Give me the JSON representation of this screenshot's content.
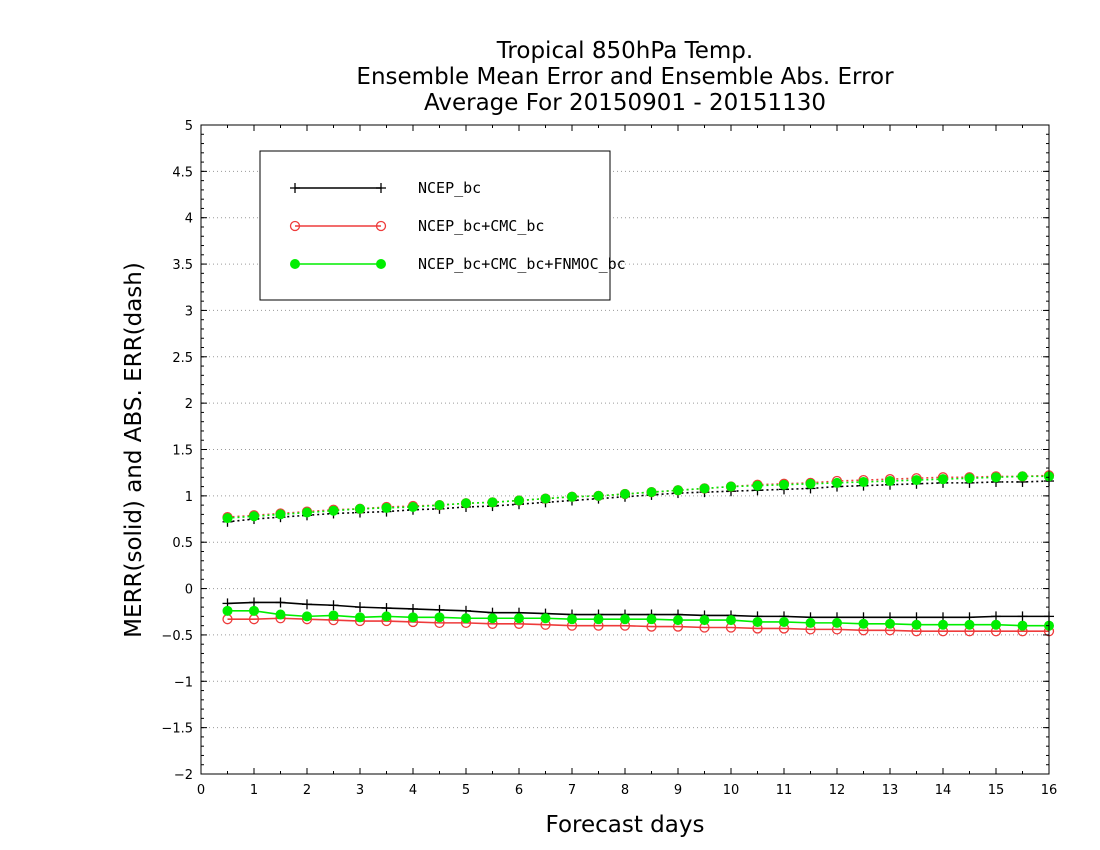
{
  "chart_data": {
    "type": "line",
    "title": [
      "Tropical 850hPa Temp.",
      "Ensemble Mean Error and Ensemble Abs. Error",
      "Average For 20150901 - 20151130"
    ],
    "xlabel": "Forecast days",
    "ylabel": "MERR(solid) and ABS. ERR(dash)",
    "xlim": [
      0,
      16
    ],
    "ylim": [
      -2,
      5
    ],
    "xticks": [
      "0",
      "1",
      "2",
      "3",
      "4",
      "5",
      "6",
      "7",
      "8",
      "9",
      "10",
      "11",
      "12",
      "13",
      "14",
      "15",
      "16"
    ],
    "yticks": [
      "−2",
      "−1.5",
      "−1",
      "−0.5",
      "0",
      "0.5",
      "1",
      "1.5",
      "2",
      "2.5",
      "3",
      "3.5",
      "4",
      "4.5",
      "5"
    ],
    "grid": true,
    "legend_position": "top-left",
    "x": [
      0.5,
      1,
      1.5,
      2,
      2.5,
      3,
      3.5,
      4,
      4.5,
      5,
      5.5,
      6,
      6.5,
      7,
      7.5,
      8,
      8.5,
      9,
      9.5,
      10,
      10.5,
      11,
      11.5,
      12,
      12.5,
      13,
      13.5,
      14,
      14.5,
      15,
      15.5,
      16
    ],
    "series": [
      {
        "name": "NCEP_bc",
        "color": "#000000",
        "marker": "plus",
        "merr": [
          -0.16,
          -0.15,
          -0.15,
          -0.17,
          -0.18,
          -0.2,
          -0.21,
          -0.22,
          -0.23,
          -0.24,
          -0.26,
          -0.26,
          -0.27,
          -0.28,
          -0.28,
          -0.28,
          -0.28,
          -0.28,
          -0.29,
          -0.29,
          -0.3,
          -0.3,
          -0.31,
          -0.31,
          -0.31,
          -0.31,
          -0.31,
          -0.31,
          -0.31,
          -0.3,
          -0.3,
          -0.3
        ],
        "abs_err": [
          0.72,
          0.75,
          0.77,
          0.79,
          0.81,
          0.82,
          0.83,
          0.85,
          0.86,
          0.88,
          0.89,
          0.91,
          0.93,
          0.95,
          0.97,
          0.99,
          1.01,
          1.03,
          1.04,
          1.05,
          1.06,
          1.07,
          1.08,
          1.1,
          1.11,
          1.12,
          1.13,
          1.14,
          1.14,
          1.15,
          1.15,
          1.16
        ]
      },
      {
        "name": "NCEP_bc+CMC_bc",
        "color": "#ee3b3b",
        "marker": "open-circle",
        "merr": [
          -0.33,
          -0.33,
          -0.32,
          -0.33,
          -0.34,
          -0.35,
          -0.35,
          -0.36,
          -0.37,
          -0.37,
          -0.38,
          -0.38,
          -0.39,
          -0.4,
          -0.4,
          -0.4,
          -0.41,
          -0.41,
          -0.42,
          -0.42,
          -0.43,
          -0.43,
          -0.44,
          -0.44,
          -0.45,
          -0.45,
          -0.46,
          -0.46,
          -0.46,
          -0.46,
          -0.46,
          -0.46
        ],
        "abs_err": [
          0.77,
          0.79,
          0.81,
          0.83,
          0.85,
          0.86,
          0.88,
          0.89,
          0.9,
          0.92,
          0.93,
          0.95,
          0.97,
          0.99,
          1.0,
          1.02,
          1.04,
          1.06,
          1.08,
          1.1,
          1.12,
          1.13,
          1.14,
          1.16,
          1.17,
          1.18,
          1.19,
          1.2,
          1.2,
          1.21,
          1.21,
          1.22
        ]
      },
      {
        "name": "NCEP_bc+CMC_bc+FNMOC_bc",
        "color": "#00ee00",
        "marker": "filled-circle",
        "merr": [
          -0.24,
          -0.24,
          -0.28,
          -0.3,
          -0.29,
          -0.31,
          -0.3,
          -0.31,
          -0.31,
          -0.32,
          -0.32,
          -0.32,
          -0.32,
          -0.33,
          -0.33,
          -0.33,
          -0.33,
          -0.34,
          -0.34,
          -0.34,
          -0.36,
          -0.36,
          -0.37,
          -0.37,
          -0.38,
          -0.38,
          -0.39,
          -0.39,
          -0.39,
          -0.39,
          -0.4,
          -0.4
        ],
        "abs_err": [
          0.76,
          0.78,
          0.8,
          0.82,
          0.84,
          0.86,
          0.87,
          0.88,
          0.9,
          0.92,
          0.93,
          0.95,
          0.97,
          0.99,
          1.0,
          1.02,
          1.04,
          1.06,
          1.08,
          1.1,
          1.11,
          1.12,
          1.13,
          1.14,
          1.15,
          1.16,
          1.17,
          1.18,
          1.19,
          1.2,
          1.21,
          1.21
        ]
      }
    ]
  }
}
